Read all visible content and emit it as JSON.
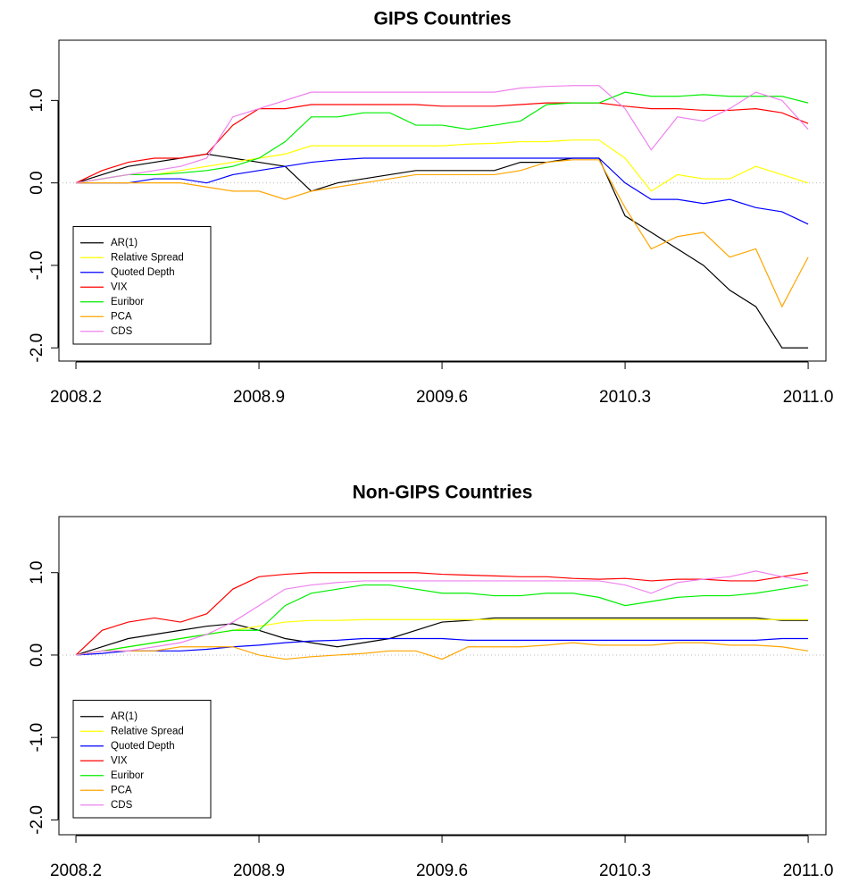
{
  "chart_data": [
    {
      "type": "line",
      "title": "GIPS Countries",
      "x": [
        2008.2,
        2008.3,
        2008.4,
        2008.5,
        2008.6,
        2008.7,
        2008.8,
        2008.9,
        2009.0,
        2009.1,
        2009.2,
        2009.3,
        2009.4,
        2009.5,
        2009.6,
        2009.7,
        2009.8,
        2009.9,
        2010.0,
        2010.1,
        2010.2,
        2010.3,
        2010.4,
        2010.5,
        2010.6,
        2010.7,
        2010.8,
        2010.9,
        2011.0
      ],
      "series": [
        {
          "name": "AR(1)",
          "color": "#000000",
          "values": [
            0,
            0.1,
            0.2,
            0.25,
            0.3,
            0.35,
            0.3,
            0.25,
            0.2,
            -0.1,
            0,
            0.05,
            0.1,
            0.15,
            0.15,
            0.15,
            0.15,
            0.25,
            0.25,
            0.3,
            0.3,
            -0.4,
            -0.6,
            -0.8,
            -1.0,
            -1.3,
            -1.5,
            -2.0,
            -2.0
          ]
        },
        {
          "name": "Relative Spread",
          "color": "#ffff00",
          "values": [
            0,
            0.05,
            0.1,
            0.1,
            0.15,
            0.2,
            0.25,
            0.3,
            0.35,
            0.45,
            0.45,
            0.45,
            0.45,
            0.45,
            0.45,
            0.47,
            0.48,
            0.5,
            0.5,
            0.52,
            0.52,
            0.3,
            -0.1,
            0.1,
            0.05,
            0.05,
            0.2,
            0.1,
            0.0
          ]
        },
        {
          "name": "Quoted Depth",
          "color": "#0000ff",
          "values": [
            0,
            0,
            0,
            0.05,
            0.05,
            0.0,
            0.1,
            0.15,
            0.2,
            0.25,
            0.28,
            0.3,
            0.3,
            0.3,
            0.3,
            0.3,
            0.3,
            0.3,
            0.3,
            0.3,
            0.3,
            0.0,
            -0.2,
            -0.2,
            -0.25,
            -0.2,
            -0.3,
            -0.35,
            -0.5
          ]
        },
        {
          "name": "VIX",
          "color": "#ff0000",
          "values": [
            0,
            0.15,
            0.25,
            0.3,
            0.3,
            0.35,
            0.7,
            0.9,
            0.9,
            0.95,
            0.95,
            0.95,
            0.95,
            0.95,
            0.93,
            0.93,
            0.93,
            0.95,
            0.97,
            0.97,
            0.97,
            0.93,
            0.9,
            0.9,
            0.88,
            0.88,
            0.9,
            0.85,
            0.72
          ]
        },
        {
          "name": "Euribor",
          "color": "#00ee00",
          "values": [
            0,
            0.05,
            0.1,
            0.1,
            0.12,
            0.15,
            0.2,
            0.3,
            0.5,
            0.8,
            0.8,
            0.85,
            0.85,
            0.7,
            0.7,
            0.65,
            0.7,
            0.75,
            0.95,
            0.97,
            0.97,
            1.1,
            1.05,
            1.05,
            1.07,
            1.05,
            1.05,
            1.05,
            0.97
          ]
        },
        {
          "name": "PCA",
          "color": "#ffa500",
          "values": [
            0,
            0,
            0,
            0.0,
            0.0,
            -0.05,
            -0.1,
            -0.1,
            -0.2,
            -0.1,
            -0.05,
            0.0,
            0.05,
            0.1,
            0.1,
            0.1,
            0.1,
            0.15,
            0.25,
            0.28,
            0.28,
            -0.3,
            -0.8,
            -0.65,
            -0.6,
            -0.9,
            -0.8,
            -1.5,
            -0.9
          ]
        },
        {
          "name": "CDS",
          "color": "#ee82ee",
          "values": [
            0,
            0.05,
            0.1,
            0.15,
            0.2,
            0.3,
            0.8,
            0.9,
            1.0,
            1.1,
            1.1,
            1.1,
            1.1,
            1.1,
            1.1,
            1.1,
            1.1,
            1.15,
            1.17,
            1.18,
            1.18,
            0.9,
            0.4,
            0.8,
            0.75,
            0.9,
            1.1,
            1.0,
            0.65
          ]
        }
      ],
      "xlim": [
        2008.135,
        2011.068
      ],
      "xticks": [
        2008.2,
        2008.9,
        2009.6,
        2010.3,
        {
          "value": 2011,
          "label": "2011.0"
        }
      ],
      "ylim": [
        -2.16,
        1.73
      ],
      "yticks": [
        {
          "value": -2,
          "label": "-2.0"
        },
        {
          "value": -1,
          "label": "-1.0"
        },
        {
          "value": 0,
          "label": "0.0"
        },
        {
          "value": 1,
          "label": "1.0"
        }
      ],
      "reference_line": 0,
      "legend": "bottom-left"
    },
    {
      "type": "line",
      "title": "Non-GIPS Countries",
      "x": [
        2008.2,
        2008.3,
        2008.4,
        2008.5,
        2008.6,
        2008.7,
        2008.8,
        2008.9,
        2009.0,
        2009.1,
        2009.2,
        2009.3,
        2009.4,
        2009.5,
        2009.6,
        2009.7,
        2009.8,
        2009.9,
        2010.0,
        2010.1,
        2010.2,
        2010.3,
        2010.4,
        2010.5,
        2010.6,
        2010.7,
        2010.8,
        2010.9,
        2011.0
      ],
      "series": [
        {
          "name": "AR(1)",
          "color": "#000000",
          "values": [
            0,
            0.1,
            0.2,
            0.25,
            0.3,
            0.35,
            0.38,
            0.3,
            0.2,
            0.15,
            0.1,
            0.15,
            0.2,
            0.3,
            0.4,
            0.42,
            0.45,
            0.45,
            0.45,
            0.45,
            0.45,
            0.45,
            0.45,
            0.45,
            0.45,
            0.45,
            0.45,
            0.42,
            0.42
          ]
        },
        {
          "name": "Relative Spread",
          "color": "#ffff00",
          "values": [
            0,
            0.05,
            0.1,
            0.15,
            0.2,
            0.25,
            0.3,
            0.35,
            0.4,
            0.42,
            0.42,
            0.43,
            0.43,
            0.43,
            0.43,
            0.43,
            0.43,
            0.43,
            0.43,
            0.43,
            0.43,
            0.43,
            0.43,
            0.43,
            0.43,
            0.43,
            0.43,
            0.43,
            0.43
          ]
        },
        {
          "name": "Quoted Depth",
          "color": "#0000ff",
          "values": [
            0,
            0.02,
            0.05,
            0.05,
            0.05,
            0.07,
            0.1,
            0.12,
            0.15,
            0.17,
            0.18,
            0.2,
            0.2,
            0.2,
            0.2,
            0.18,
            0.18,
            0.18,
            0.18,
            0.18,
            0.18,
            0.18,
            0.18,
            0.18,
            0.18,
            0.18,
            0.18,
            0.2,
            0.2
          ]
        },
        {
          "name": "VIX",
          "color": "#ff0000",
          "values": [
            0,
            0.3,
            0.4,
            0.45,
            0.4,
            0.5,
            0.8,
            0.95,
            0.98,
            1.0,
            1.0,
            1.0,
            1.0,
            1.0,
            0.98,
            0.97,
            0.96,
            0.95,
            0.95,
            0.93,
            0.92,
            0.93,
            0.9,
            0.92,
            0.92,
            0.9,
            0.9,
            0.95,
            1.0
          ]
        },
        {
          "name": "Euribor",
          "color": "#00ee00",
          "values": [
            0,
            0.05,
            0.1,
            0.15,
            0.2,
            0.25,
            0.3,
            0.3,
            0.6,
            0.75,
            0.8,
            0.85,
            0.85,
            0.8,
            0.75,
            0.75,
            0.72,
            0.72,
            0.75,
            0.75,
            0.7,
            0.6,
            0.65,
            0.7,
            0.72,
            0.72,
            0.75,
            0.8,
            0.85
          ]
        },
        {
          "name": "PCA",
          "color": "#ffa500",
          "values": [
            0,
            0.05,
            0.05,
            0.05,
            0.1,
            0.1,
            0.1,
            0.0,
            -0.05,
            -0.02,
            0.0,
            0.02,
            0.05,
            0.05,
            -0.05,
            0.1,
            0.1,
            0.1,
            0.12,
            0.15,
            0.12,
            0.12,
            0.12,
            0.15,
            0.15,
            0.12,
            0.12,
            0.1,
            0.05
          ]
        },
        {
          "name": "CDS",
          "color": "#ee82ee",
          "values": [
            0,
            0.05,
            0.05,
            0.1,
            0.15,
            0.25,
            0.4,
            0.6,
            0.8,
            0.85,
            0.88,
            0.9,
            0.9,
            0.9,
            0.9,
            0.9,
            0.9,
            0.9,
            0.9,
            0.9,
            0.9,
            0.85,
            0.75,
            0.88,
            0.92,
            0.95,
            1.02,
            0.95,
            0.9
          ]
        }
      ],
      "xlim": [
        2008.135,
        2011.068
      ],
      "xticks": [
        2008.2,
        2008.9,
        2009.6,
        2010.3,
        {
          "value": 2011,
          "label": "2011.0"
        }
      ],
      "ylim": [
        -2.18,
        1.68
      ],
      "yticks": [
        {
          "value": -2,
          "label": "-2.0"
        },
        {
          "value": -1,
          "label": "-1.0"
        },
        {
          "value": 0,
          "label": "0.0"
        },
        {
          "value": 1,
          "label": "1.0"
        }
      ],
      "reference_line": 0,
      "legend": "bottom-left"
    }
  ]
}
